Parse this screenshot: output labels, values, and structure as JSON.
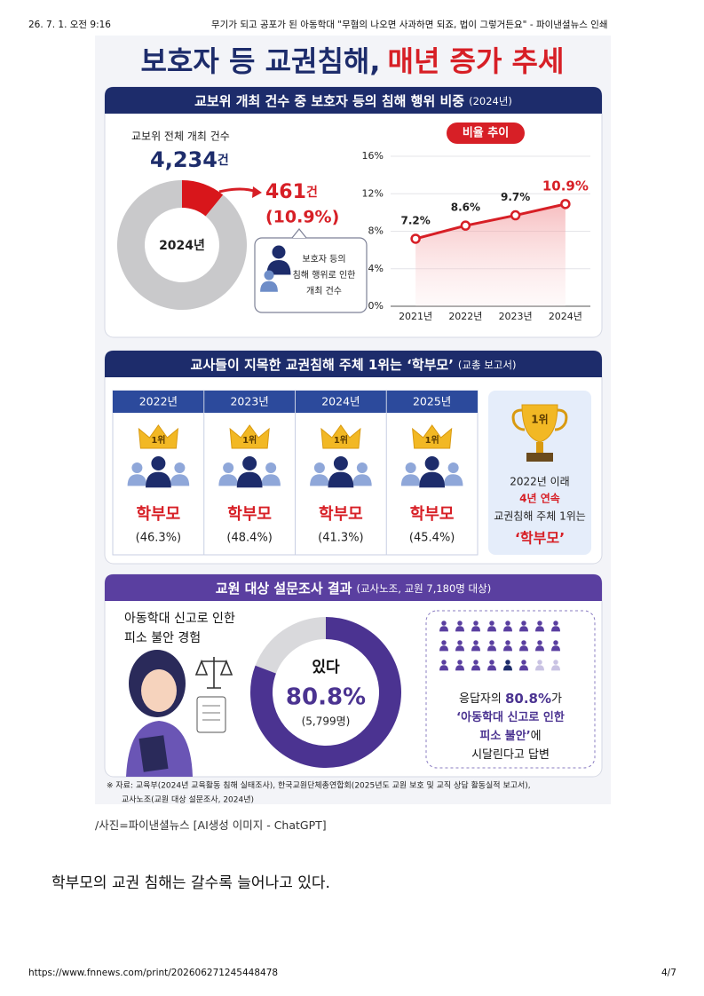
{
  "browser_header": {
    "datetime": "26. 7. 1. 오전 9:16",
    "page_title": "무기가 되고 공포가 된 아동학대 \"무혐의 나오면 사과하면 되죠, 법이 그렇거든요\" - 파이낸셜뉴스 인쇄"
  },
  "infographic": {
    "title": {
      "main": "보호자 등 교권침해,",
      "highlight": "매년 증가 추세"
    },
    "section1": {
      "heading": "교보위 개최 건수 중 보호자 등의 침해 행위 비중",
      "heading_note": "(2024년)",
      "total_label": "교보위 전체 개최 건수",
      "total": "4,234",
      "total_unit": "건",
      "donut": {
        "center_label": "2024년",
        "count": "461",
        "count_unit": "건",
        "share": {
          "value": 10.9,
          "label": "(10.9%)"
        },
        "colors": [
          "#d8161b",
          "#c9c9cb"
        ]
      },
      "callout": [
        "보호자 등의",
        "침해 행위로 인한",
        "개최 건수"
      ],
      "trend": {
        "badge": "비율 추이",
        "categories": [
          "2021년",
          "2022년",
          "2023년",
          "2024년"
        ],
        "values": [
          7.2,
          8.6,
          9.7,
          10.9
        ],
        "value_labels": [
          "7.2%",
          "8.6%",
          "9.7%",
          "10.9%"
        ],
        "ylim": [
          0,
          16
        ],
        "yticks": [
          {
            "value": 0,
            "label": "0%"
          },
          {
            "value": 4,
            "label": "4%"
          },
          {
            "value": 8,
            "label": "8%"
          },
          {
            "value": 12,
            "label": "12%"
          },
          {
            "value": 16,
            "label": "16%"
          }
        ],
        "color": "#d71f26",
        "grid": true
      }
    },
    "section2": {
      "heading": "교사들이 지목한 교권침해 주체 1위는 ‘학부모’",
      "heading_note": "(교총 보고서)",
      "columns": [
        {
          "year": "2022년",
          "rank": "1위",
          "subject": "학부모",
          "share": "(46.3%)"
        },
        {
          "year": "2023년",
          "rank": "1위",
          "subject": "학부모",
          "share": "(48.4%)"
        },
        {
          "year": "2024년",
          "rank": "1위",
          "subject": "학부모",
          "share": "(41.3%)"
        },
        {
          "year": "2025년",
          "rank": "1위",
          "subject": "학부모",
          "share": "(45.4%)"
        }
      ],
      "summary": {
        "rank": "1위",
        "lines": [
          "2022년 이래",
          "4년 연속",
          "교권침해 주체 1위는",
          "‘학부모’"
        ]
      }
    },
    "section3": {
      "heading": "교원 대상 설문조사 결과",
      "heading_note": "(교사노조, 교원 7,180명 대상)",
      "question": [
        "아동학대 신고로 인한",
        "피소 불안 경험"
      ],
      "donut": {
        "answer": "있다",
        "share": {
          "value": 80.8,
          "label": "80.8%"
        },
        "count": "(5,799명)",
        "colors": [
          "#4b3391",
          "#d9d9dc"
        ]
      },
      "summary": [
        [
          {
            "text": "응답자의 "
          },
          {
            "text": "80.8%",
            "em": true
          },
          {
            "text": "가"
          }
        ],
        [
          {
            "text": "‘아동학대 신고로 인한",
            "em": true
          }
        ],
        [
          {
            "text": "피소 불안’",
            "em": true
          },
          {
            "text": "에"
          }
        ],
        [
          {
            "text": "시달린다고 답변"
          }
        ]
      ]
    },
    "source": [
      "※ 자료: 교육부(2024년 교육활동 침해 실태조사), 한국교원단체총연합회(2025년도 교원 보호 및 교직 상담 활동실적 보고서),",
      "교사노조(교원 대상 설문조사, 2024년)"
    ]
  },
  "caption": "/사진=파이낸셜뉴스 [AI생성 이미지 - ChatGPT]",
  "body": "학부모의 교권 침해는 갈수록 늘어나고 있다.",
  "footer": {
    "url": "https://www.fnnews.com/print/202606271245448478",
    "page": "4/7"
  }
}
